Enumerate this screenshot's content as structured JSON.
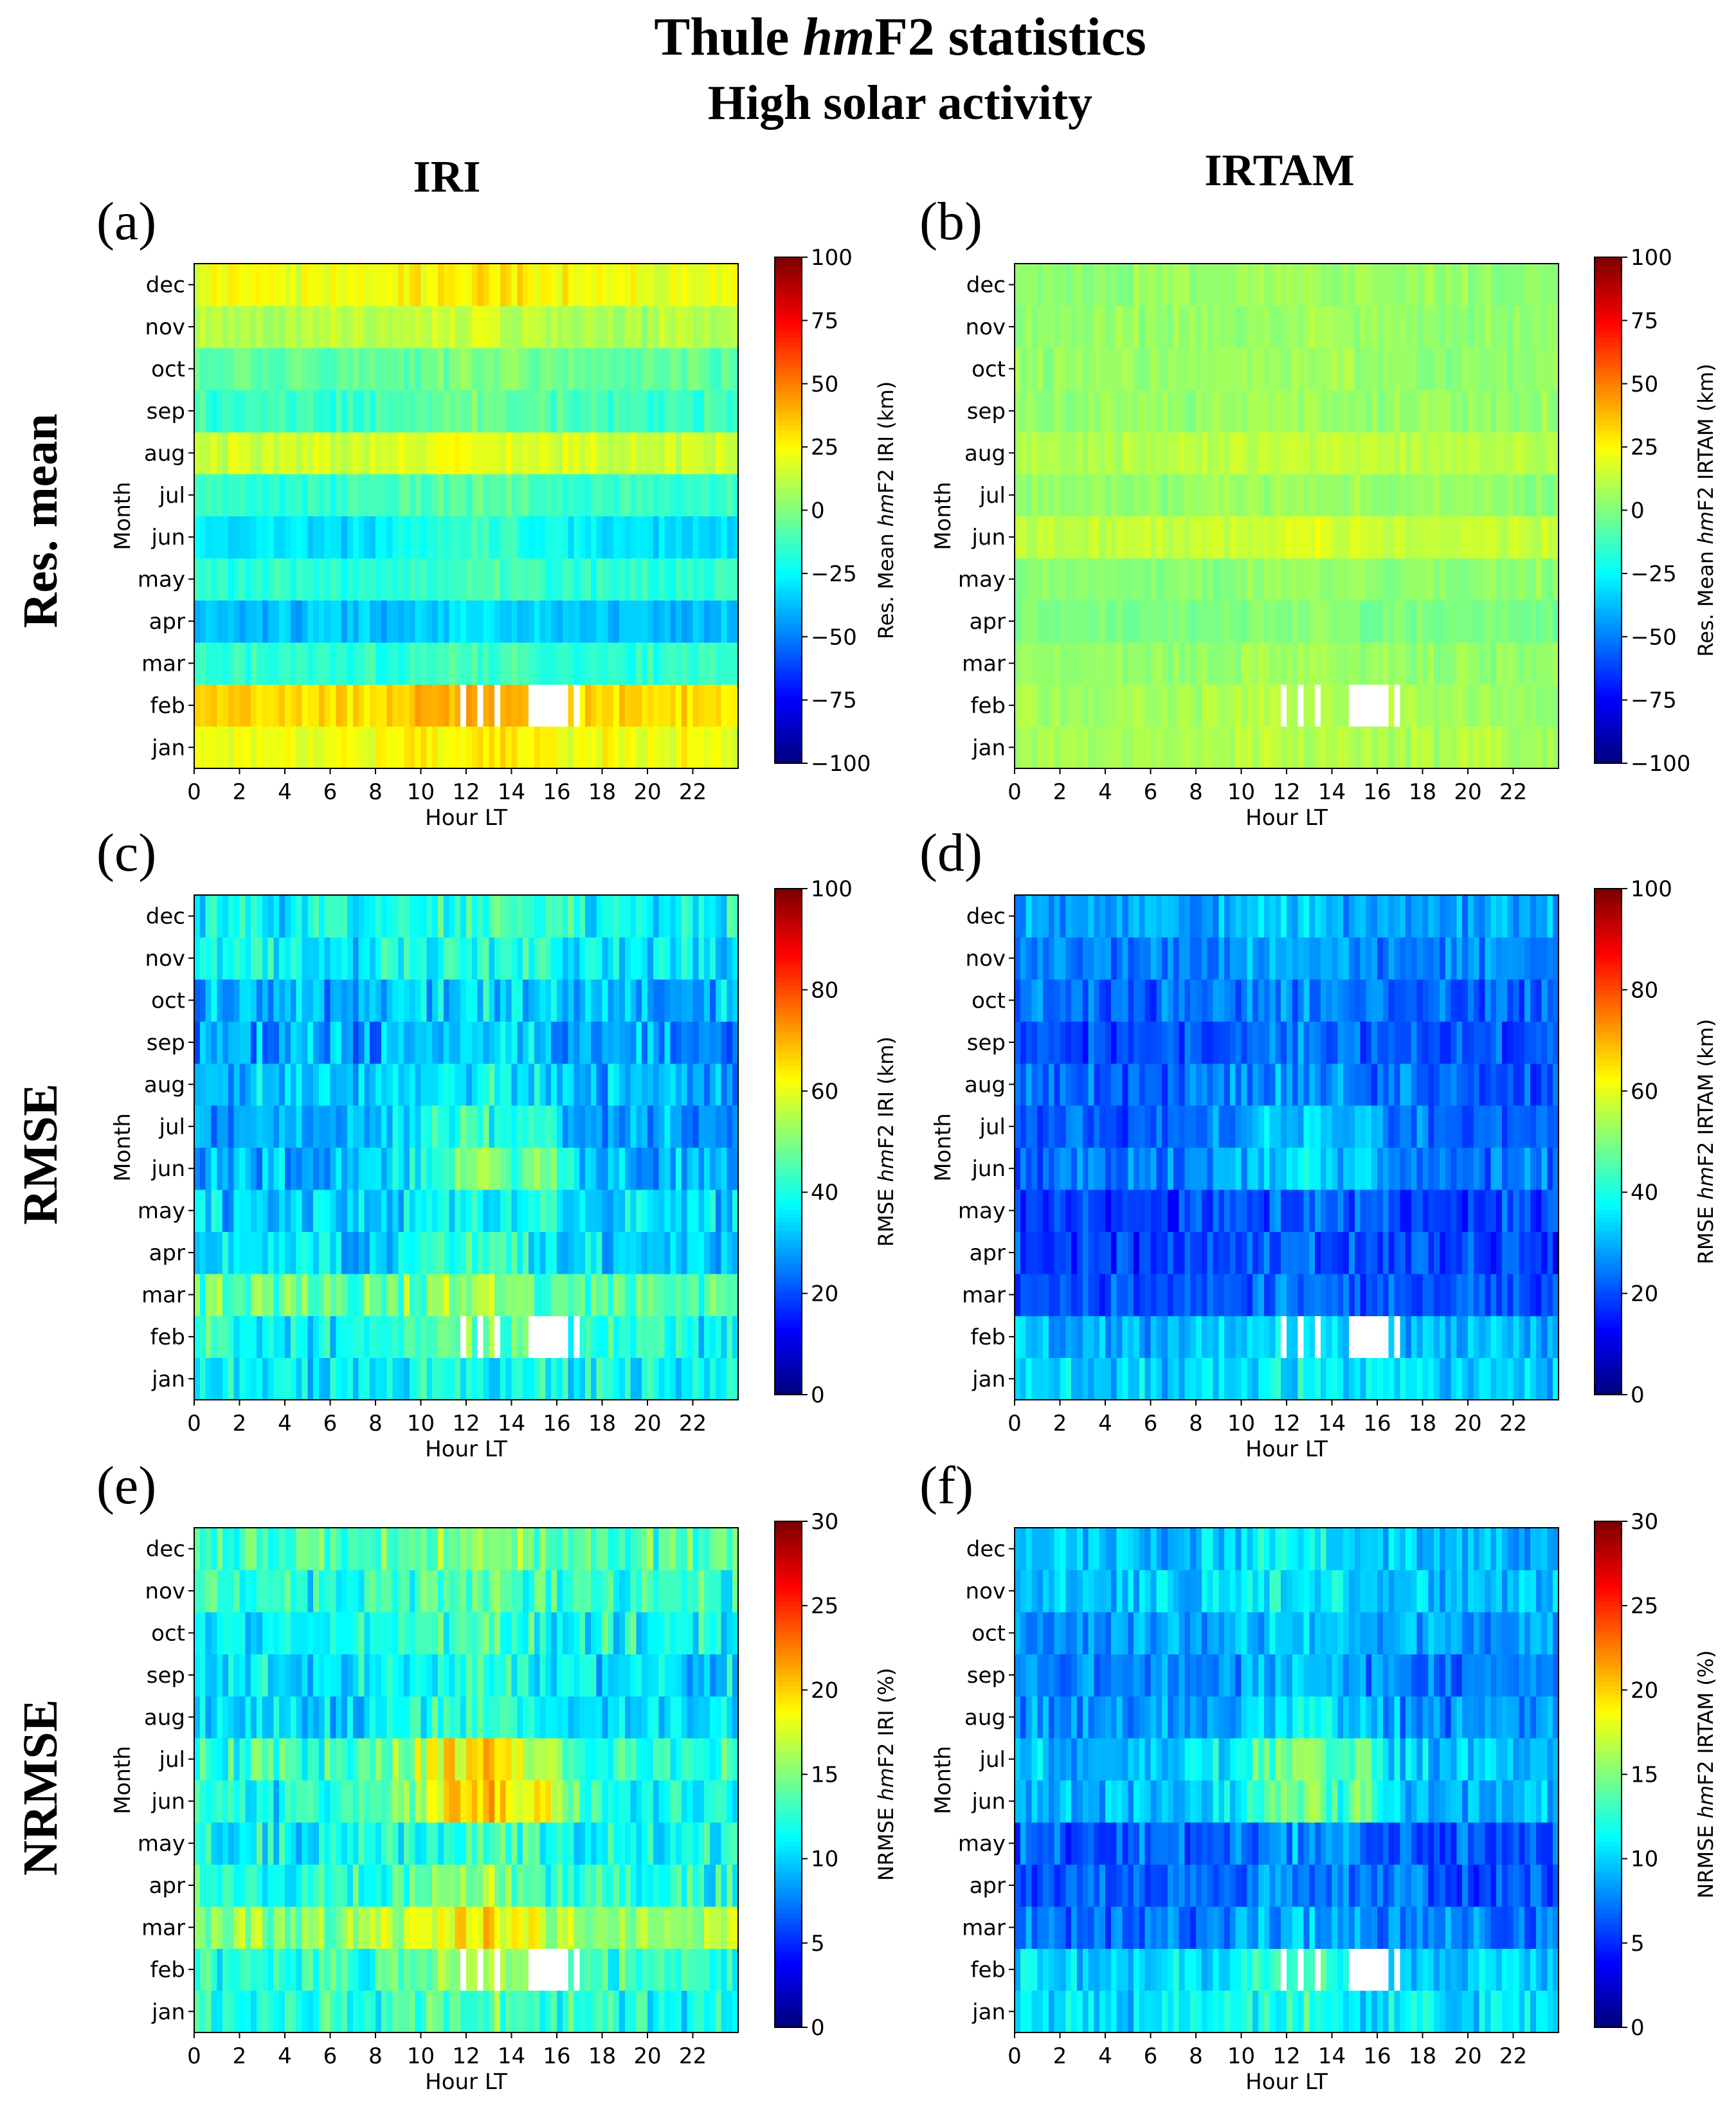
{
  "figure": {
    "title_prefix": "Thule ",
    "title_italic": "hm",
    "title_suffix": "F2 statistics",
    "subtitle": "High solar activity",
    "column_titles": [
      "IRI",
      "IRTAM"
    ],
    "row_titles": [
      "Res. mean",
      "RMSE",
      "NRMSE"
    ]
  },
  "chart_data": [
    {
      "type": "heatmap",
      "panel": "(a)",
      "model": "IRI",
      "metric": "resmean",
      "xlabel": "Hour LT",
      "ylabel": "Month",
      "xlim": [
        0,
        24
      ],
      "xticks": [
        0,
        2,
        4,
        6,
        8,
        10,
        12,
        14,
        16,
        18,
        20,
        22
      ],
      "months": [
        "jan",
        "feb",
        "mar",
        "apr",
        "may",
        "jun",
        "jul",
        "aug",
        "sep",
        "oct",
        "nov",
        "dec"
      ],
      "colorbar": {
        "label_pre": "Res. Mean ",
        "label_italic": "hm",
        "label_post": "F2 IRI (km)",
        "min": -100,
        "max": 100,
        "ticks": [
          -100,
          -75,
          -50,
          -25,
          0,
          25,
          50,
          75,
          100
        ]
      },
      "hour_step": 0.25,
      "monthly_base": [
        25,
        35,
        -15,
        -35,
        -15,
        -25,
        -12,
        18,
        -10,
        -5,
        12,
        25
      ],
      "diurnal_amp": [
        6,
        12,
        5,
        7,
        6,
        15,
        8,
        8,
        10,
        6,
        6,
        8
      ],
      "noise": 7,
      "missing_hours": [
        [
          11.75,
          12.0
        ],
        [
          12.5,
          12.75
        ],
        [
          13.25,
          13.5
        ],
        [
          14.75,
          16.5
        ],
        [
          16.75,
          17.0
        ]
      ]
    },
    {
      "type": "heatmap",
      "panel": "(b)",
      "model": "IRTAM",
      "metric": "resmean",
      "xlabel": "Hour LT",
      "ylabel": "Month",
      "xlim": [
        0,
        24
      ],
      "xticks": [
        0,
        2,
        4,
        6,
        8,
        10,
        12,
        14,
        16,
        18,
        20,
        22
      ],
      "months": [
        "jan",
        "feb",
        "mar",
        "apr",
        "may",
        "jun",
        "jul",
        "aug",
        "sep",
        "oct",
        "nov",
        "dec"
      ],
      "colorbar": {
        "label_pre": "Res. Mean ",
        "label_italic": "hm",
        "label_post": "F2 IRTAM (km)",
        "min": -100,
        "max": 100,
        "ticks": [
          -100,
          -75,
          -50,
          -25,
          0,
          25,
          50,
          75,
          100
        ]
      },
      "hour_step": 0.25,
      "monthly_base": [
        10,
        8,
        5,
        0,
        3,
        15,
        5,
        12,
        5,
        5,
        5,
        5
      ],
      "diurnal_amp": [
        3,
        3,
        3,
        3,
        3,
        6,
        3,
        4,
        3,
        3,
        3,
        3
      ],
      "noise": 5,
      "missing_hours": [
        [
          11.75,
          12.0
        ],
        [
          12.5,
          12.75
        ],
        [
          13.25,
          13.5
        ],
        [
          14.75,
          16.5
        ],
        [
          16.75,
          17.0
        ]
      ]
    },
    {
      "type": "heatmap",
      "panel": "(c)",
      "model": "IRI",
      "metric": "rmse",
      "xlabel": "Hour LT",
      "ylabel": "Month",
      "xlim": [
        0,
        24
      ],
      "xticks": [
        0,
        2,
        4,
        6,
        8,
        10,
        12,
        14,
        16,
        18,
        20,
        22
      ],
      "months": [
        "jan",
        "feb",
        "mar",
        "apr",
        "may",
        "jun",
        "jul",
        "aug",
        "sep",
        "oct",
        "nov",
        "dec"
      ],
      "colorbar": {
        "label_pre": "RMSE ",
        "label_italic": "hm",
        "label_post": "F2 IRI (km)",
        "min": 0,
        "max": 100,
        "ticks": [
          0,
          20,
          40,
          60,
          80,
          100
        ]
      },
      "hour_step": 0.25,
      "monthly_base": [
        38,
        42,
        48,
        36,
        36,
        38,
        33,
        33,
        30,
        32,
        38,
        40
      ],
      "diurnal_amp": [
        4,
        8,
        6,
        6,
        6,
        22,
        14,
        8,
        6,
        5,
        5,
        5
      ],
      "noise": 8,
      "missing_hours": [
        [
          11.75,
          12.0
        ],
        [
          12.5,
          12.75
        ],
        [
          13.25,
          13.5
        ],
        [
          14.75,
          16.5
        ],
        [
          16.75,
          17.0
        ]
      ]
    },
    {
      "type": "heatmap",
      "panel": "(d)",
      "model": "IRTAM",
      "metric": "rmse",
      "xlabel": "Hour LT",
      "ylabel": "Month",
      "xlim": [
        0,
        24
      ],
      "xticks": [
        0,
        2,
        4,
        6,
        8,
        10,
        12,
        14,
        16,
        18,
        20,
        22
      ],
      "months": [
        "jan",
        "feb",
        "mar",
        "apr",
        "may",
        "jun",
        "jul",
        "aug",
        "sep",
        "oct",
        "nov",
        "dec"
      ],
      "colorbar": {
        "label_pre": "RMSE ",
        "label_italic": "hm",
        "label_post": "F2 IRTAM (km)",
        "min": 0,
        "max": 100,
        "ticks": [
          0,
          20,
          40,
          60,
          80,
          100
        ]
      },
      "hour_step": 0.25,
      "monthly_base": [
        34,
        32,
        22,
        20,
        20,
        28,
        26,
        24,
        22,
        24,
        27,
        30
      ],
      "diurnal_amp": [
        4,
        8,
        3,
        3,
        3,
        10,
        10,
        6,
        4,
        4,
        4,
        4
      ],
      "noise": 6,
      "missing_hours": [
        [
          11.75,
          12.0
        ],
        [
          12.5,
          12.75
        ],
        [
          13.25,
          13.5
        ],
        [
          14.75,
          16.5
        ],
        [
          16.75,
          17.0
        ]
      ]
    },
    {
      "type": "heatmap",
      "panel": "(e)",
      "model": "IRI",
      "metric": "nrmse",
      "xlabel": "Hour LT",
      "ylabel": "Month",
      "xlim": [
        0,
        24
      ],
      "xticks": [
        0,
        2,
        4,
        6,
        8,
        10,
        12,
        14,
        16,
        18,
        20,
        22
      ],
      "months": [
        "jan",
        "feb",
        "mar",
        "apr",
        "may",
        "jun",
        "jul",
        "aug",
        "sep",
        "oct",
        "nov",
        "dec"
      ],
      "colorbar": {
        "label_pre": "NRMSE ",
        "label_italic": "hm",
        "label_post": "F2 IRI (%)",
        "min": 0,
        "max": 30,
        "ticks": [
          0,
          5,
          10,
          15,
          20,
          25,
          30
        ]
      },
      "hour_step": 0.25,
      "monthly_base": [
        13,
        14,
        17,
        13,
        12,
        15,
        15,
        11,
        11,
        12,
        13,
        14
      ],
      "diurnal_amp": [
        2,
        3,
        4,
        3,
        2,
        9,
        7,
        3,
        2,
        2,
        2,
        2
      ],
      "noise": 2.5,
      "missing_hours": [
        [
          11.75,
          12.0
        ],
        [
          12.5,
          12.75
        ],
        [
          13.25,
          13.5
        ],
        [
          14.75,
          16.5
        ],
        [
          16.75,
          17.0
        ]
      ]
    },
    {
      "type": "heatmap",
      "panel": "(f)",
      "model": "IRTAM",
      "metric": "nrmse",
      "xlabel": "Hour LT",
      "ylabel": "Month",
      "xlim": [
        0,
        24
      ],
      "xticks": [
        0,
        2,
        4,
        6,
        8,
        10,
        12,
        14,
        16,
        18,
        20,
        22
      ],
      "months": [
        "jan",
        "feb",
        "mar",
        "apr",
        "may",
        "jun",
        "jul",
        "aug",
        "sep",
        "oct",
        "nov",
        "dec"
      ],
      "colorbar": {
        "label_pre": "NRMSE ",
        "label_italic": "hm",
        "label_post": "F2 IRTAM (%)",
        "min": 0,
        "max": 30,
        "ticks": [
          0,
          5,
          10,
          15,
          20,
          25,
          30
        ]
      },
      "hour_step": 0.25,
      "monthly_base": [
        11,
        11,
        8,
        7,
        7,
        11,
        11,
        9,
        8,
        9,
        10,
        10
      ],
      "diurnal_amp": [
        2,
        3,
        2,
        2,
        2,
        5,
        5,
        3,
        2,
        2,
        2,
        2
      ],
      "noise": 2,
      "missing_hours": [
        [
          11.75,
          12.0
        ],
        [
          12.5,
          12.75
        ],
        [
          13.25,
          13.5
        ],
        [
          14.75,
          16.5
        ],
        [
          16.75,
          17.0
        ]
      ]
    }
  ]
}
